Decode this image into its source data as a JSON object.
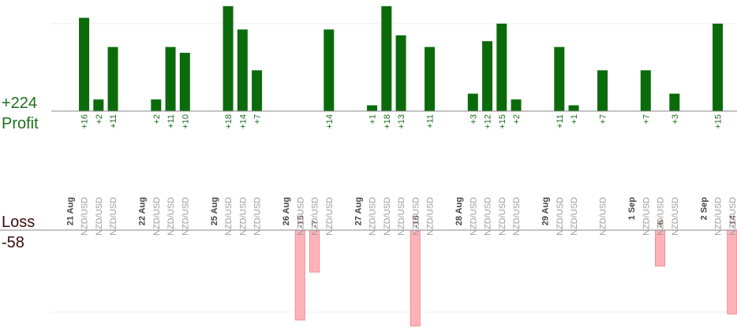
{
  "profit_total": "+224",
  "profit_label": "Profit",
  "loss_label": "Loss",
  "loss_total": "-58",
  "colors": {
    "profit_bar": "#0b6b0b",
    "profit_text": "#1a6e1a",
    "loss_bar": "#ffb3b8",
    "loss_text": "#3a0a0a",
    "grid": "#eeeeee",
    "axis": "#888888"
  },
  "chart_data": {
    "type": "bar",
    "title": "",
    "profit_axis_max": 16,
    "loss_axis_max": 16,
    "dates": [
      {
        "label": "21 Aug",
        "slot": 0
      },
      {
        "label": "22 Aug",
        "slot": 5
      },
      {
        "label": "25 Aug",
        "slot": 10
      },
      {
        "label": "26 Aug",
        "slot": 15
      },
      {
        "label": "27 Aug",
        "slot": 20
      },
      {
        "label": "28 Aug",
        "slot": 27
      },
      {
        "label": "29 Aug",
        "slot": 33
      },
      {
        "label": "1 Sep",
        "slot": 39
      },
      {
        "label": "2 Sep",
        "slot": 44
      }
    ],
    "trades": [
      {
        "slot": 1,
        "symbol": "NZD/USD",
        "value": 16
      },
      {
        "slot": 2,
        "symbol": "NZD/USD",
        "value": 2
      },
      {
        "slot": 3,
        "symbol": "NZD/USD",
        "value": 11
      },
      {
        "slot": 6,
        "symbol": "NZD/USD",
        "value": 2
      },
      {
        "slot": 7,
        "symbol": "NZD/USD",
        "value": 11
      },
      {
        "slot": 8,
        "symbol": "NZD/USD",
        "value": 10
      },
      {
        "slot": 11,
        "symbol": "NZD/USD",
        "value": 18
      },
      {
        "slot": 12,
        "symbol": "NZD/USD",
        "value": 14
      },
      {
        "slot": 13,
        "symbol": "NZD/USD",
        "value": 7
      },
      {
        "slot": 16,
        "symbol": "NZD/USD",
        "value": -15
      },
      {
        "slot": 17,
        "symbol": "NZD/USD",
        "value": -7
      },
      {
        "slot": 18,
        "symbol": "NZD/USD",
        "value": 14
      },
      {
        "slot": 21,
        "symbol": "NZD/USD",
        "value": 1
      },
      {
        "slot": 22,
        "symbol": "NZD/USD",
        "value": 18
      },
      {
        "slot": 23,
        "symbol": "NZD/USD",
        "value": 13
      },
      {
        "slot": 24,
        "symbol": "NZD/USD",
        "value": -16
      },
      {
        "slot": 25,
        "symbol": "NZD/USD",
        "value": 11
      },
      {
        "slot": 28,
        "symbol": "NZD/USD",
        "value": 3
      },
      {
        "slot": 29,
        "symbol": "NZD/USD",
        "value": 12
      },
      {
        "slot": 30,
        "symbol": "NZD/USD",
        "value": 15
      },
      {
        "slot": 31,
        "symbol": "NZD/USD",
        "value": 2
      },
      {
        "slot": 34,
        "symbol": "NZD/USD",
        "value": 11
      },
      {
        "slot": 35,
        "symbol": "NZD/USD",
        "value": 1
      },
      {
        "slot": 37,
        "symbol": "NZD/USD",
        "value": 7
      },
      {
        "slot": 40,
        "symbol": "NZD/USD",
        "value": 7
      },
      {
        "slot": 41,
        "symbol": "NZD/USD",
        "value": -6
      },
      {
        "slot": 42,
        "symbol": "NZD/USD",
        "value": 3
      },
      {
        "slot": 45,
        "symbol": "NZD/USD",
        "value": 15
      },
      {
        "slot": 46,
        "symbol": "NZD/USD",
        "value": -14
      }
    ]
  }
}
